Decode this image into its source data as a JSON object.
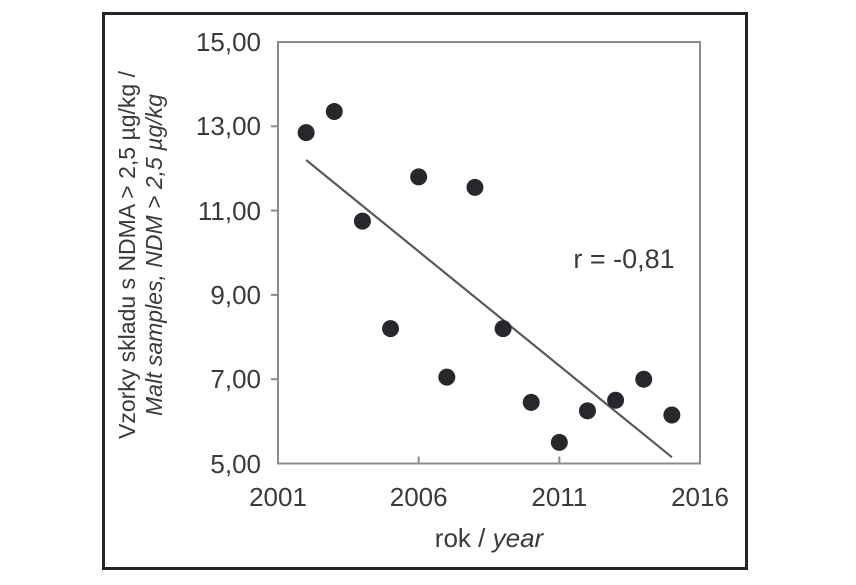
{
  "figure": {
    "border_color": "#23232b",
    "background_color": "#ffffff"
  },
  "chart_data": {
    "type": "scatter",
    "title": "",
    "xlabel": "rok / year",
    "xlabel_regular": "rok /",
    "xlabel_italic": "year",
    "ylabel": "Vzorky skladu s NDMA > 2,5 µg/kg / Malt samples, NDM > 2,5 µg/kg",
    "ylabel_line1": "Vzorky skladu s NDMA > 2,5 µg/kg /",
    "ylabel_line2": "Malt samples, NDM > 2,5 µg/kg",
    "annotation": "r = -0,81",
    "xlim": [
      2001,
      2016
    ],
    "ylim": [
      5,
      15
    ],
    "grid": false,
    "legend": false,
    "x_ticks": [
      {
        "value": 2001,
        "label": "2001"
      },
      {
        "value": 2006,
        "label": "2006"
      },
      {
        "value": 2011,
        "label": "2011"
      },
      {
        "value": 2016,
        "label": "2016"
      }
    ],
    "y_ticks": [
      {
        "value": 5,
        "label": "5,00"
      },
      {
        "value": 7,
        "label": "7,00"
      },
      {
        "value": 9,
        "label": "9,00"
      },
      {
        "value": 11,
        "label": "11,00"
      },
      {
        "value": 13,
        "label": "13,00"
      },
      {
        "value": 15,
        "label": "15,00"
      }
    ],
    "points": [
      {
        "x": 2002,
        "y": 12.85
      },
      {
        "x": 2003,
        "y": 13.35
      },
      {
        "x": 2004,
        "y": 10.75
      },
      {
        "x": 2005,
        "y": 8.2
      },
      {
        "x": 2006,
        "y": 11.8
      },
      {
        "x": 2007,
        "y": 7.05
      },
      {
        "x": 2008,
        "y": 11.55
      },
      {
        "x": 2009,
        "y": 8.2
      },
      {
        "x": 2010,
        "y": 6.45
      },
      {
        "x": 2011,
        "y": 5.5
      },
      {
        "x": 2012,
        "y": 6.25
      },
      {
        "x": 2013,
        "y": 6.5
      },
      {
        "x": 2014,
        "y": 7.0
      },
      {
        "x": 2015,
        "y": 6.15
      }
    ],
    "trend_line": {
      "x1": 2002,
      "y1": 12.2,
      "x2": 2015,
      "y2": 5.15
    },
    "point_color": "#28282c",
    "line_color": "#5a5a5c",
    "frame_color": "#8c8c8c",
    "text_color": "#3a3a3d"
  }
}
